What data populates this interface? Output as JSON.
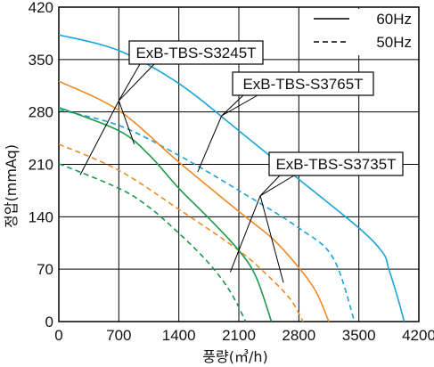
{
  "chart_data": {
    "type": "line",
    "xlabel": "풍량(㎥/h)",
    "ylabel": "정압(mmAq)",
    "xlim": [
      0,
      4200
    ],
    "ylim": [
      0,
      420
    ],
    "x_ticks": [
      "0",
      "700",
      "1400",
      "2100",
      "2800",
      "3500",
      "4200"
    ],
    "y_ticks": [
      "0",
      "70",
      "140",
      "210",
      "280",
      "350",
      "420"
    ],
    "grid": true,
    "legend": {
      "position": "top-right",
      "entries": [
        {
          "label": "60Hz",
          "style": "solid"
        },
        {
          "label": "50Hz",
          "style": "dashed"
        }
      ]
    },
    "series": [
      {
        "color": "#1aa3d6",
        "style": "solid",
        "x": [
          0,
          700,
          1400,
          2100,
          2800,
          3500,
          3780,
          3850,
          3950,
          4030
        ],
        "y": [
          383,
          362,
          318,
          255,
          190,
          125,
          92,
          70,
          33,
          0
        ]
      },
      {
        "color": "#1aa3d6",
        "style": "dashed",
        "x": [
          0,
          700,
          1400,
          2100,
          2800,
          3200,
          3450
        ],
        "y": [
          283,
          262,
          222,
          175,
          125,
          85,
          0
        ]
      },
      {
        "color": "#f08a24",
        "style": "solid",
        "x": [
          0,
          700,
          1400,
          2100,
          2500,
          2800,
          3000,
          3150
        ],
        "y": [
          321,
          282,
          213,
          147,
          110,
          72,
          40,
          0
        ]
      },
      {
        "color": "#f08a24",
        "style": "dashed",
        "x": [
          0,
          700,
          1400,
          2100,
          2450,
          2700,
          2850
        ],
        "y": [
          237,
          202,
          150,
          95,
          60,
          30,
          0
        ]
      },
      {
        "color": "#1a9a4a",
        "style": "solid",
        "x": [
          0,
          700,
          1050,
          1400,
          1750,
          2100,
          2300,
          2480
        ],
        "y": [
          286,
          255,
          223,
          178,
          138,
          95,
          60,
          0
        ]
      },
      {
        "color": "#1a9a4a",
        "style": "dashed",
        "x": [
          0,
          700,
          1050,
          1400,
          1750,
          2000,
          2180
        ],
        "y": [
          211,
          178,
          153,
          118,
          78,
          40,
          0
        ]
      }
    ],
    "annotations": [
      {
        "text": "ExB-TBS-S3245T"
      },
      {
        "text": "ExB-TBS-S3765T"
      },
      {
        "text": "ExB-TBS-S3735T"
      }
    ]
  }
}
